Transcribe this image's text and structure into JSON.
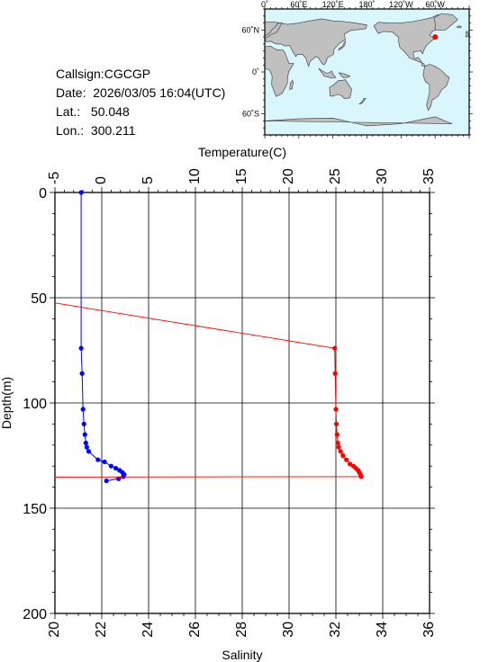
{
  "info": {
    "callsign_label": "Callsign:",
    "callsign": "CGCGP",
    "date_label": "Date:",
    "date": "2026/03/05 16:04(UTC)",
    "lat_label": "Lat.:",
    "lat": "50.048",
    "lon_label": "Lon.:",
    "lon": "300.211"
  },
  "map": {
    "lon_labels": [
      "0˚",
      "60˚E",
      "120˚E",
      "180˚",
      "120˚W",
      "60˚W"
    ],
    "lat_labels": [
      "60˚N",
      "0˚",
      "60˚S"
    ],
    "ocean_color": "#d8f6fc",
    "land_color": "#c0c0c0",
    "marker_color": "#ff0000",
    "marker": {
      "lon": 300.211,
      "lat": 50.048
    }
  },
  "chart_data": {
    "type": "line",
    "y_axis": {
      "label": "Depth(m)",
      "range": [
        0,
        200
      ],
      "inverted": true,
      "ticks": [
        0,
        50,
        100,
        150,
        200
      ]
    },
    "top_axis": {
      "label": "Temperature(C)",
      "range": [
        -5,
        35
      ],
      "ticks": [
        -5,
        0,
        5,
        10,
        15,
        20,
        25,
        30,
        35
      ]
    },
    "bottom_axis": {
      "label": "Salinity",
      "range": [
        20,
        36
      ],
      "ticks": [
        20,
        22,
        24,
        26,
        28,
        30,
        32,
        34,
        36
      ]
    },
    "grid": true,
    "series": [
      {
        "axis": "top",
        "color": "#0000ff",
        "points": [
          [
            -2.2,
            0
          ],
          [
            -2.2,
            74
          ],
          [
            -2.1,
            86
          ],
          [
            -2.0,
            103
          ],
          [
            -1.9,
            110
          ],
          [
            -1.8,
            115
          ],
          [
            -1.7,
            119
          ],
          [
            -1.6,
            121
          ],
          [
            -1.4,
            123
          ],
          [
            -0.4,
            127
          ],
          [
            0.3,
            128
          ],
          [
            1.0,
            130
          ],
          [
            1.5,
            131
          ],
          [
            1.9,
            132
          ],
          [
            2.2,
            133
          ],
          [
            2.4,
            134
          ],
          [
            2.3,
            135
          ],
          [
            1.8,
            136
          ],
          [
            0.5,
            137
          ]
        ]
      },
      {
        "axis": "bottom",
        "color": "#ff0000",
        "points": [
          [
            31.95,
            74
          ],
          [
            31.97,
            86
          ],
          [
            32.0,
            103
          ],
          [
            32.02,
            110
          ],
          [
            32.05,
            115
          ],
          [
            32.08,
            119
          ],
          [
            32.12,
            121
          ],
          [
            32.2,
            123
          ],
          [
            32.3,
            125
          ],
          [
            32.45,
            127
          ],
          [
            32.6,
            129
          ],
          [
            32.75,
            130
          ],
          [
            32.85,
            131
          ],
          [
            32.95,
            132
          ],
          [
            33.0,
            133
          ],
          [
            33.05,
            134
          ],
          [
            33.08,
            135
          ]
        ],
        "lines": [
          [
            [
              20,
              52.5
            ],
            [
              31.95,
              74
            ]
          ],
          [
            [
              20,
              135.2
            ],
            [
              33.08,
              135
            ]
          ]
        ]
      }
    ]
  }
}
